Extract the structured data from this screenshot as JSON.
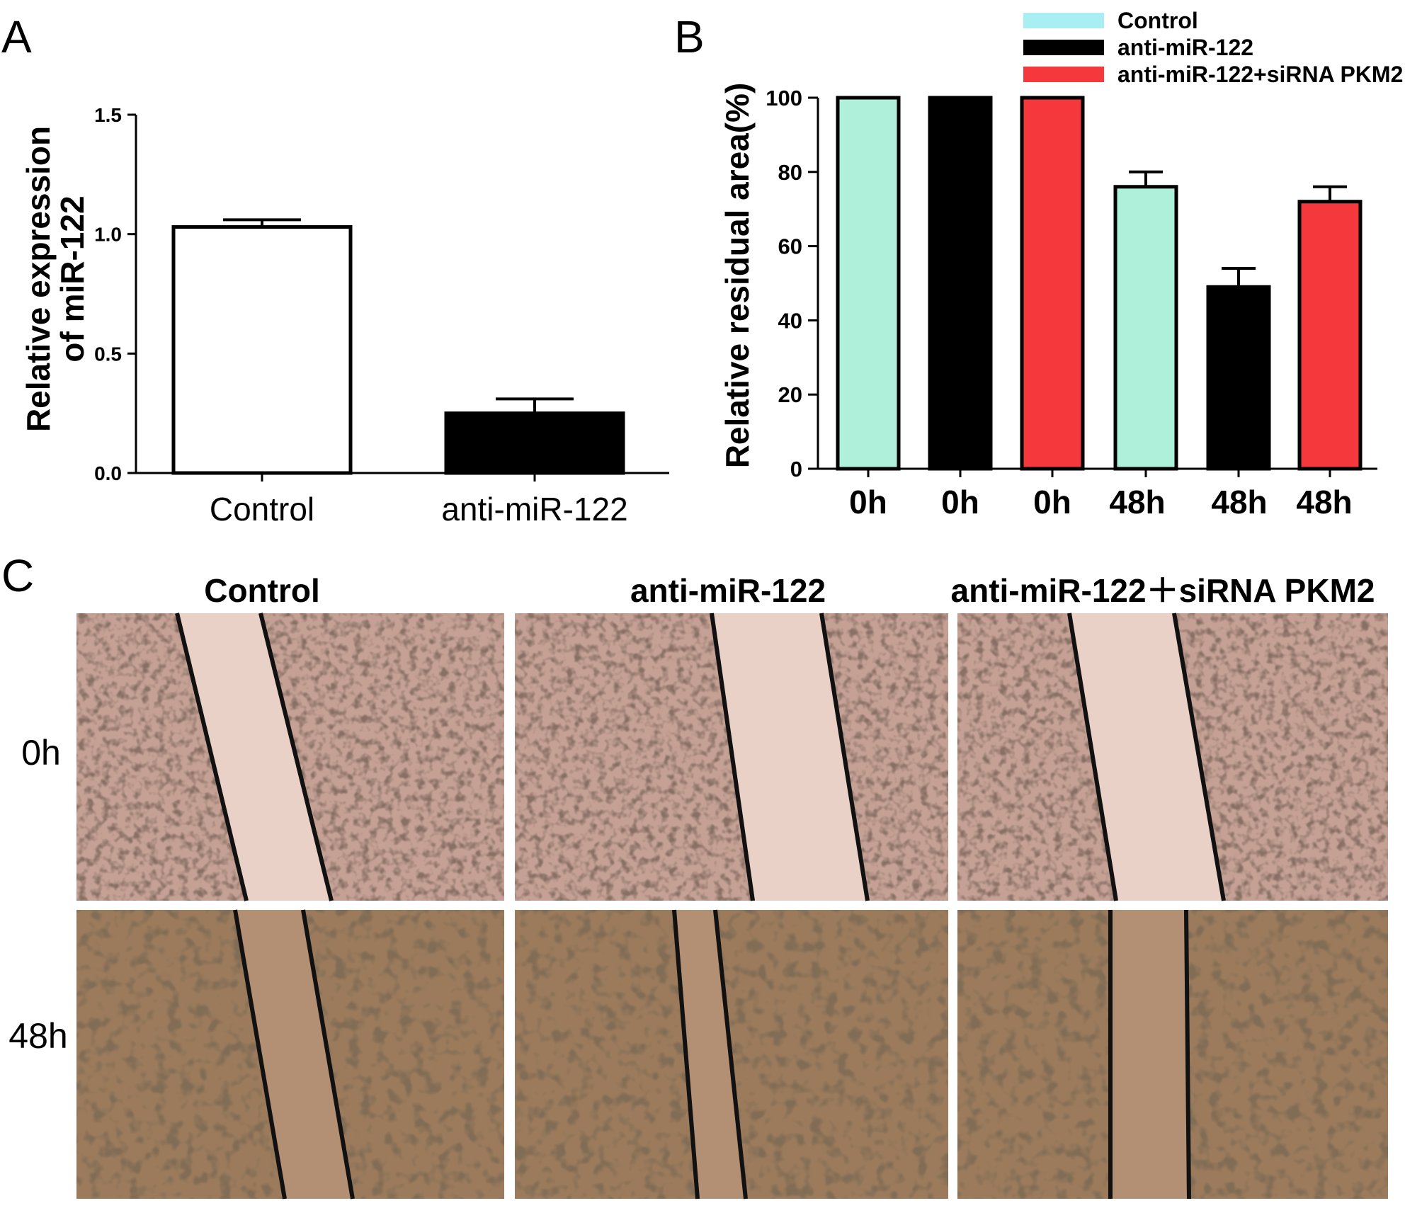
{
  "panels": {
    "a": "A",
    "b": "B",
    "c": "C"
  },
  "chart_data": [
    {
      "panel": "A",
      "type": "bar",
      "ylabel_line1": "Relative expression",
      "ylabel_line2": "of miR-122",
      "ylim": [
        0,
        1.5
      ],
      "yticks": [
        0.0,
        0.5,
        1.0,
        1.5
      ],
      "ytick_labels": [
        "0.0",
        "0.5",
        "1.0",
        "1.5"
      ],
      "categories": [
        "Control",
        "anti-miR-122"
      ],
      "values": [
        1.03,
        0.25
      ],
      "errors": [
        0.03,
        0.06
      ],
      "colors": [
        "#ffffff",
        "#000000"
      ],
      "grid": false
    },
    {
      "panel": "B",
      "type": "bar",
      "ylabel": "Relative residual area(%)",
      "ylim": [
        0,
        100
      ],
      "yticks": [
        0,
        20,
        40,
        60,
        80,
        100
      ],
      "ytick_labels": [
        "0",
        "20",
        "40",
        "60",
        "80",
        "100"
      ],
      "categories": [
        "0h",
        "0h",
        "0h",
        "48h",
        "48h",
        "48h"
      ],
      "values": [
        100,
        100,
        100,
        76,
        49,
        72
      ],
      "errors": [
        0,
        0,
        0,
        4,
        5,
        4
      ],
      "bar_series": [
        0,
        1,
        2,
        0,
        1,
        2
      ],
      "series": [
        {
          "name": "Control",
          "color": "#aef0da",
          "legend_color": "#a8eef2"
        },
        {
          "name": "anti-miR-122",
          "color": "#000000",
          "legend_color": "#000000"
        },
        {
          "name": "anti-miR-122+siRNA PKM2",
          "color": "#f5383c",
          "legend_color": "#f5383c"
        }
      ],
      "legend": "top-right",
      "grid": false
    }
  ],
  "micrographs": {
    "columns": [
      "Control",
      "anti-miR-122",
      "anti-miR-122＋siRNA PKM2"
    ],
    "rows": [
      "0h",
      "48h"
    ],
    "tints": {
      "0h": "#c5a195",
      "48h": "#9c7b5c"
    },
    "scratch_tints": {
      "0h": "#ead1c8",
      "48h": "#b39073"
    }
  }
}
